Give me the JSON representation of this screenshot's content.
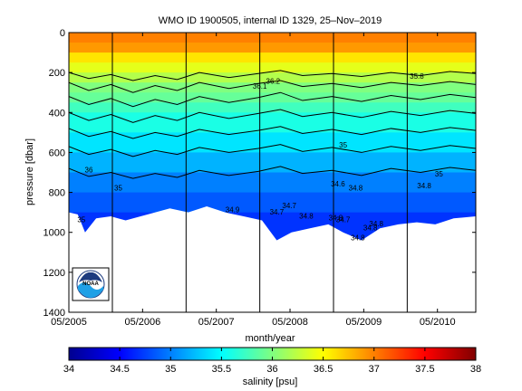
{
  "chart_data": [
    {
      "type": "heatmap",
      "title": "WMO ID 1900505, internal ID 1329, 25–Nov–2019",
      "xlabel": "month/year",
      "ylabel": "pressure [dbar]",
      "x_tick_labels": [
        "05/2005",
        "05/2006",
        "05/2007",
        "05/2008",
        "05/2009",
        "05/2010"
      ],
      "x_ticks_year": [
        2005.33,
        2006.33,
        2007.33,
        2008.33,
        2009.33,
        2010.33
      ],
      "xlim_year": [
        2005.33,
        2010.85
      ],
      "y_ticks": [
        0,
        200,
        400,
        600,
        800,
        1000,
        1200,
        1400
      ],
      "ylim": [
        1400,
        0
      ],
      "y_reversed": true,
      "year_boundaries_year": [
        2005.92,
        2006.92,
        2007.92,
        2008.92,
        2009.92
      ],
      "colorbar": {
        "label": "salinity [psu]",
        "ticks": [
          34,
          34.5,
          35,
          35.5,
          36,
          36.5,
          37,
          37.5,
          38
        ],
        "range": [
          34,
          38
        ],
        "colormap": "jet"
      },
      "salinity_bands_by_pressure": [
        {
          "pressure_dbar": 0,
          "salinity": 37.0
        },
        {
          "pressure_dbar": 50,
          "salinity": 36.9
        },
        {
          "pressure_dbar": 100,
          "salinity": 36.6
        },
        {
          "pressure_dbar": 150,
          "salinity": 36.4
        },
        {
          "pressure_dbar": 200,
          "salinity": 36.2
        },
        {
          "pressure_dbar": 250,
          "salinity": 36.0
        },
        {
          "pressure_dbar": 300,
          "salinity": 35.9
        },
        {
          "pressure_dbar": 350,
          "salinity": 35.75
        },
        {
          "pressure_dbar": 400,
          "salinity": 35.6
        },
        {
          "pressure_dbar": 500,
          "salinity": 35.4
        },
        {
          "pressure_dbar": 600,
          "salinity": 35.2
        },
        {
          "pressure_dbar": 700,
          "salinity": 35.0
        },
        {
          "pressure_dbar": 800,
          "salinity": 34.85
        },
        {
          "pressure_dbar": 900,
          "salinity": 34.7
        }
      ],
      "profile_max_pressure_dbar": [
        {
          "year": 2005.33,
          "pressure": 900
        },
        {
          "year": 2005.45,
          "pressure": 910
        },
        {
          "year": 2005.55,
          "pressure": 1000
        },
        {
          "year": 2005.7,
          "pressure": 930
        },
        {
          "year": 2005.9,
          "pressure": 920
        },
        {
          "year": 2006.1,
          "pressure": 940
        },
        {
          "year": 2006.4,
          "pressure": 910
        },
        {
          "year": 2006.7,
          "pressure": 880
        },
        {
          "year": 2006.95,
          "pressure": 900
        },
        {
          "year": 2007.2,
          "pressure": 870
        },
        {
          "year": 2007.45,
          "pressure": 900
        },
        {
          "year": 2007.7,
          "pressure": 920
        },
        {
          "year": 2007.95,
          "pressure": 940
        },
        {
          "year": 2008.15,
          "pressure": 1040
        },
        {
          "year": 2008.35,
          "pressure": 1000
        },
        {
          "year": 2008.6,
          "pressure": 980
        },
        {
          "year": 2008.85,
          "pressure": 960
        },
        {
          "year": 2009.05,
          "pressure": 1000
        },
        {
          "year": 2009.3,
          "pressure": 1040
        },
        {
          "year": 2009.55,
          "pressure": 980
        },
        {
          "year": 2009.8,
          "pressure": 960
        },
        {
          "year": 2010.05,
          "pressure": 950
        },
        {
          "year": 2010.3,
          "pressure": 960
        },
        {
          "year": 2010.55,
          "pressure": 930
        },
        {
          "year": 2010.85,
          "pressure": 920
        }
      ],
      "contour_lines": [
        {
          "level": 36.2,
          "points": [
            [
              2005.33,
              200
            ],
            [
              2005.6,
              230
            ],
            [
              2005.9,
              210
            ],
            [
              2006.2,
              240
            ],
            [
              2006.5,
              215
            ],
            [
              2006.8,
              235
            ],
            [
              2007.1,
              200
            ],
            [
              2007.5,
              225
            ],
            [
              2007.9,
              205
            ],
            [
              2008.2,
              190
            ],
            [
              2008.5,
              215
            ],
            [
              2008.9,
              205
            ],
            [
              2009.3,
              220
            ],
            [
              2009.7,
              200
            ],
            [
              2010.1,
              215
            ],
            [
              2010.5,
              195
            ],
            [
              2010.85,
              205
            ]
          ]
        },
        {
          "level": 36.0,
          "points": [
            [
              2005.33,
              250
            ],
            [
              2005.6,
              290
            ],
            [
              2005.9,
              260
            ],
            [
              2006.2,
              300
            ],
            [
              2006.5,
              265
            ],
            [
              2006.8,
              290
            ],
            [
              2007.1,
              250
            ],
            [
              2007.5,
              280
            ],
            [
              2007.9,
              255
            ],
            [
              2008.2,
              240
            ],
            [
              2008.5,
              270
            ],
            [
              2008.9,
              255
            ],
            [
              2009.3,
              275
            ],
            [
              2009.7,
              250
            ],
            [
              2010.1,
              265
            ],
            [
              2010.5,
              245
            ],
            [
              2010.85,
              260
            ]
          ]
        },
        {
          "level": 35.8,
          "points": [
            [
              2005.33,
              320
            ],
            [
              2005.6,
              360
            ],
            [
              2005.9,
              330
            ],
            [
              2006.2,
              370
            ],
            [
              2006.5,
              335
            ],
            [
              2006.8,
              360
            ],
            [
              2007.1,
              320
            ],
            [
              2007.5,
              350
            ],
            [
              2007.9,
              325
            ],
            [
              2008.2,
              300
            ],
            [
              2008.5,
              340
            ],
            [
              2008.9,
              320
            ],
            [
              2009.3,
              345
            ],
            [
              2009.7,
              315
            ],
            [
              2010.1,
              335
            ],
            [
              2010.5,
              310
            ],
            [
              2010.85,
              325
            ]
          ]
        },
        {
          "level": 35.6,
          "points": [
            [
              2005.33,
              400
            ],
            [
              2005.6,
              440
            ],
            [
              2005.9,
              410
            ],
            [
              2006.2,
              450
            ],
            [
              2006.5,
              415
            ],
            [
              2006.8,
              440
            ],
            [
              2007.1,
              400
            ],
            [
              2007.5,
              430
            ],
            [
              2007.9,
              405
            ],
            [
              2008.2,
              385
            ],
            [
              2008.5,
              420
            ],
            [
              2008.9,
              400
            ],
            [
              2009.3,
              425
            ],
            [
              2009.7,
              395
            ],
            [
              2010.1,
              415
            ],
            [
              2010.5,
              390
            ],
            [
              2010.85,
              405
            ]
          ]
        },
        {
          "level": 35.4,
          "points": [
            [
              2005.33,
              480
            ],
            [
              2005.6,
              520
            ],
            [
              2005.9,
              495
            ],
            [
              2006.2,
              530
            ],
            [
              2006.5,
              500
            ],
            [
              2006.8,
              520
            ],
            [
              2007.1,
              485
            ],
            [
              2007.5,
              510
            ],
            [
              2007.9,
              490
            ],
            [
              2008.2,
              470
            ],
            [
              2008.5,
              505
            ],
            [
              2008.9,
              485
            ],
            [
              2009.3,
              510
            ],
            [
              2009.7,
              480
            ],
            [
              2010.1,
              500
            ],
            [
              2010.5,
              475
            ],
            [
              2010.85,
              490
            ]
          ]
        },
        {
          "level": 35.2,
          "points": [
            [
              2005.33,
              570
            ],
            [
              2005.6,
              610
            ],
            [
              2005.9,
              585
            ],
            [
              2006.2,
              620
            ],
            [
              2006.5,
              590
            ],
            [
              2006.8,
              610
            ],
            [
              2007.1,
              575
            ],
            [
              2007.5,
              600
            ],
            [
              2007.9,
              580
            ],
            [
              2008.2,
              560
            ],
            [
              2008.5,
              595
            ],
            [
              2008.9,
              575
            ],
            [
              2009.3,
              600
            ],
            [
              2009.7,
              570
            ],
            [
              2010.1,
              590
            ],
            [
              2010.5,
              565
            ],
            [
              2010.85,
              580
            ]
          ]
        },
        {
          "level": 35.0,
          "points": [
            [
              2005.33,
              680
            ],
            [
              2005.6,
              720
            ],
            [
              2005.9,
              700
            ],
            [
              2006.2,
              730
            ],
            [
              2006.5,
              705
            ],
            [
              2006.8,
              725
            ],
            [
              2007.1,
              690
            ],
            [
              2007.5,
              715
            ],
            [
              2007.9,
              695
            ],
            [
              2008.2,
              670
            ],
            [
              2008.5,
              705
            ],
            [
              2008.9,
              690
            ],
            [
              2009.3,
              715
            ],
            [
              2009.7,
              680
            ],
            [
              2010.1,
              700
            ],
            [
              2010.5,
              675
            ],
            [
              2010.85,
              690
            ]
          ]
        }
      ],
      "contour_labels": [
        {
          "text": "35.8",
          "year": 2010.05,
          "pressure": 230
        },
        {
          "text": "36.1",
          "year": 2007.92,
          "pressure": 280
        },
        {
          "text": "36.2",
          "year": 2008.1,
          "pressure": 255
        },
        {
          "text": "36",
          "year": 2005.6,
          "pressure": 700
        },
        {
          "text": "35",
          "year": 2005.5,
          "pressure": 950
        },
        {
          "text": "35",
          "year": 2006.0,
          "pressure": 790
        },
        {
          "text": "34.9",
          "year": 2007.55,
          "pressure": 900
        },
        {
          "text": "34.7",
          "year": 2008.15,
          "pressure": 910
        },
        {
          "text": "34.7",
          "year": 2008.32,
          "pressure": 880
        },
        {
          "text": "34.8",
          "year": 2008.55,
          "pressure": 930
        },
        {
          "text": "34.8",
          "year": 2008.95,
          "pressure": 940
        },
        {
          "text": "34.7",
          "year": 2009.05,
          "pressure": 950
        },
        {
          "text": "34.8",
          "year": 2009.25,
          "pressure": 1040
        },
        {
          "text": "34.8",
          "year": 2009.42,
          "pressure": 990
        },
        {
          "text": "34.8",
          "year": 2009.5,
          "pressure": 970
        },
        {
          "text": "34.6",
          "year": 2008.98,
          "pressure": 770
        },
        {
          "text": "34.8",
          "year": 2009.22,
          "pressure": 790
        },
        {
          "text": "35",
          "year": 2009.05,
          "pressure": 575
        },
        {
          "text": "34.8",
          "year": 2010.15,
          "pressure": 780
        },
        {
          "text": "35",
          "year": 2010.35,
          "pressure": 720
        }
      ]
    }
  ],
  "logo": {
    "text": "NOAA",
    "colors": {
      "navy": "#1d3b7f",
      "sky": "#1fa0e6"
    }
  }
}
